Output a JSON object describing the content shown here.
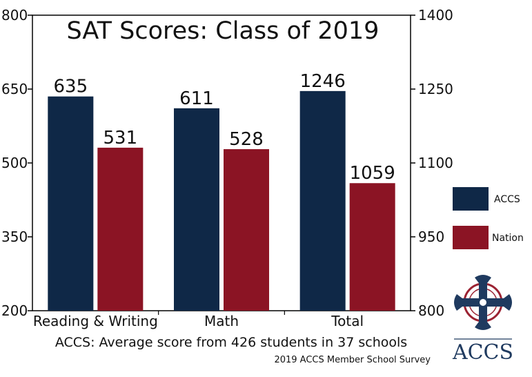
{
  "chart_data": {
    "type": "bar",
    "title": "SAT Scores: Class of 2019",
    "categories": [
      "Reading & Writing",
      "Math",
      "Total"
    ],
    "series": [
      {
        "name": "ACCS",
        "color": "#0f2847",
        "values": [
          635,
          611,
          1246
        ]
      },
      {
        "name": "Nation",
        "color": "#8b1424",
        "values": [
          531,
          528,
          1059
        ]
      }
    ],
    "data_labels": [
      [
        "635",
        "611",
        "1246"
      ],
      [
        "531",
        "528",
        "1059"
      ]
    ],
    "axis_by_category": [
      "left",
      "left",
      "right"
    ],
    "y_left": {
      "ylim": [
        200,
        800
      ],
      "ticks": [
        200,
        350,
        500,
        650,
        800
      ],
      "tick_labels": [
        "200",
        "350",
        "500",
        "650",
        "800"
      ]
    },
    "y_right": {
      "ylim": [
        800,
        1400
      ],
      "ticks": [
        800,
        950,
        1100,
        1250,
        1400
      ],
      "tick_labels": [
        "800",
        "950",
        "1100",
        "1250",
        "1400"
      ]
    },
    "grid": false,
    "legend_position": "right",
    "annotation": "ACCS: Average score from 426 students in 37 schools",
    "source": "2019 ACCS Member School Survey"
  },
  "logo": {
    "text": "ACCS",
    "icon": "cross-icon",
    "color": "#1f3a5f",
    "accent": "#9b2232"
  }
}
